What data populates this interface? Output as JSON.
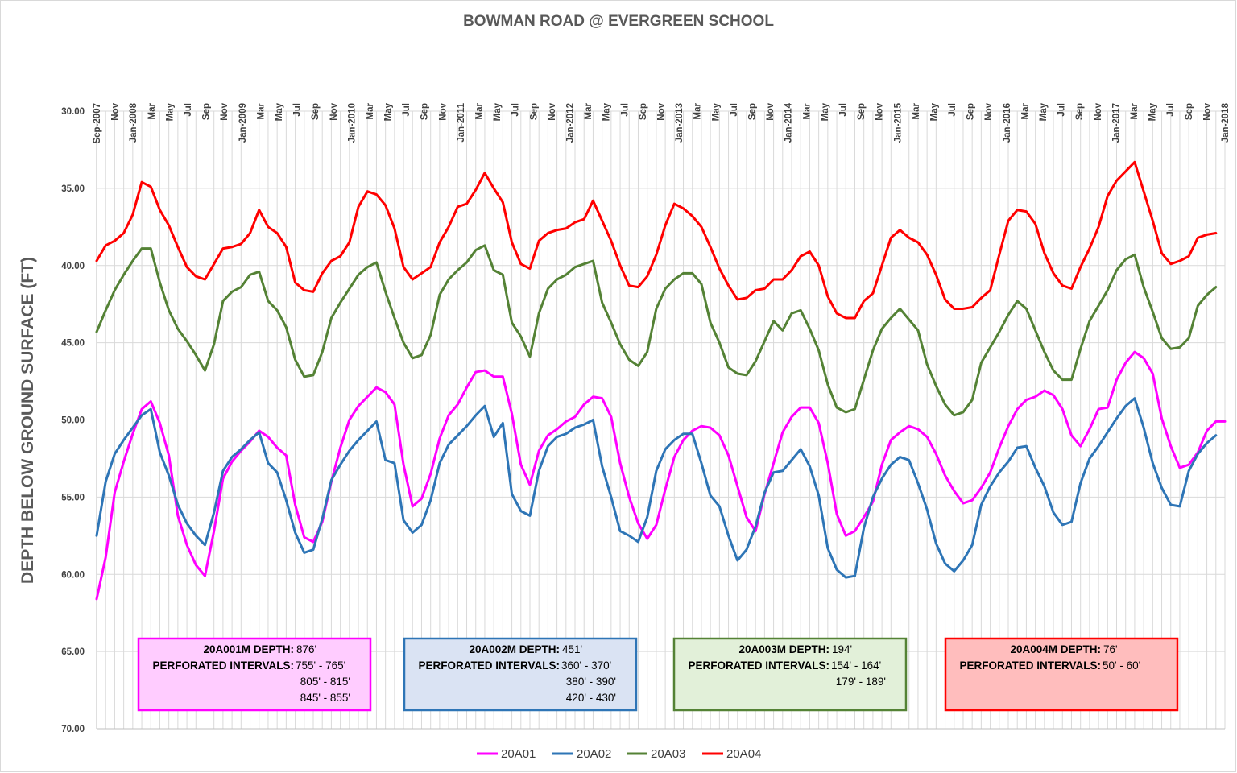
{
  "chart_data": {
    "type": "line",
    "title": "BOWMAN ROAD @ EVERGREEN SCHOOL",
    "ylabel": "DEPTH BELOW GROUND SURFACE (FT)",
    "ylim": [
      30,
      70
    ],
    "y_inverted": true,
    "y_ticks": [
      "30.00",
      "35.00",
      "40.00",
      "45.00",
      "50.00",
      "55.00",
      "60.00",
      "65.00",
      "70.00"
    ],
    "x_start": "Sep-2007",
    "x_end": "Jan-2018",
    "x_tick_labels": [
      "Sep-2007",
      "Nov",
      "Jan-2008",
      "Mar",
      "May",
      "Jul",
      "Sep",
      "Nov",
      "Jan-2009",
      "Mar",
      "May",
      "Jul",
      "Sep",
      "Nov",
      "Jan-2010",
      "Mar",
      "May",
      "Jul",
      "Sep",
      "Nov",
      "Jan-2011",
      "Mar",
      "May",
      "Jul",
      "Sep",
      "Nov",
      "Jan-2012",
      "Mar",
      "May",
      "Jul",
      "Sep",
      "Nov",
      "Jan-2013",
      "Mar",
      "May",
      "Jul",
      "Sep",
      "Nov",
      "Jan-2014",
      "Mar",
      "May",
      "Jul",
      "Sep",
      "Nov",
      "Jan-2015",
      "Mar",
      "May",
      "Jul",
      "Sep",
      "Nov",
      "Jan-2016",
      "Mar",
      "May",
      "Jul",
      "Sep",
      "Nov",
      "Jan-2017",
      "Mar",
      "May",
      "Jul",
      "Sep",
      "Nov",
      "Jan-2018"
    ],
    "grid": true,
    "legend_position": "bottom",
    "series": [
      {
        "name": "20A01",
        "color": "#ff00ff",
        "values": [
          61.6,
          58.9,
          54.7,
          52.7,
          50.9,
          49.3,
          48.8,
          50.2,
          52.3,
          56.2,
          58.1,
          59.4,
          60.1,
          57.2,
          53.8,
          52.7,
          52.0,
          51.4,
          50.7,
          51.1,
          51.8,
          52.3,
          55.5,
          57.6,
          57.9,
          56.6,
          54.0,
          51.8,
          50.0,
          49.1,
          48.5,
          47.9,
          48.2,
          49.0,
          52.9,
          55.6,
          55.1,
          53.5,
          51.2,
          49.7,
          49.0,
          47.9,
          46.9,
          46.8,
          47.2,
          47.2,
          49.6,
          52.9,
          54.2,
          52.0,
          51.0,
          50.6,
          50.1,
          49.8,
          49.0,
          48.5,
          48.6,
          49.8,
          52.8,
          55.0,
          56.7,
          57.7,
          56.8,
          54.5,
          52.4,
          51.3,
          50.7,
          50.4,
          50.5,
          51.0,
          52.3,
          54.3,
          56.3,
          57.2,
          54.8,
          52.8,
          50.8,
          49.8,
          49.2,
          49.2,
          50.2,
          52.8,
          56.1,
          57.5,
          57.2,
          56.3,
          55.3,
          52.9,
          51.3,
          50.8,
          50.4,
          50.6,
          51.1,
          52.2,
          53.6,
          54.6,
          55.4,
          55.2,
          54.4,
          53.4,
          51.8,
          50.4,
          49.3,
          48.7,
          48.5,
          48.1,
          48.4,
          49.3,
          51.0,
          51.7,
          50.6,
          49.3,
          49.2,
          47.4,
          46.3,
          45.6,
          46.0,
          47.0,
          49.9,
          51.7,
          53.1,
          52.9,
          52.1,
          50.7,
          50.1,
          50.1
        ]
      },
      {
        "name": "20A02",
        "color": "#2e75b6",
        "values": [
          57.5,
          54.0,
          52.2,
          51.3,
          50.5,
          49.7,
          49.3,
          52.1,
          53.6,
          55.5,
          56.7,
          57.5,
          58.1,
          56.0,
          53.3,
          52.4,
          51.9,
          51.3,
          50.8,
          52.8,
          53.4,
          55.2,
          57.3,
          58.6,
          58.4,
          56.4,
          53.9,
          52.9,
          52.0,
          51.3,
          50.7,
          50.1,
          52.6,
          52.8,
          56.5,
          57.3,
          56.8,
          55.2,
          52.8,
          51.6,
          51.0,
          50.4,
          49.7,
          49.1,
          51.1,
          50.2,
          54.8,
          55.9,
          56.2,
          53.3,
          51.7,
          51.1,
          50.9,
          50.5,
          50.3,
          50.0,
          53.0,
          55.0,
          57.2,
          57.5,
          57.9,
          56.3,
          53.3,
          51.9,
          51.3,
          50.9,
          50.9,
          52.8,
          54.9,
          55.6,
          57.5,
          59.1,
          58.4,
          56.9,
          54.7,
          53.4,
          53.3,
          52.6,
          51.9,
          53.0,
          54.9,
          58.3,
          59.7,
          60.2,
          60.1,
          57.0,
          55.0,
          53.8,
          52.9,
          52.4,
          52.6,
          54.1,
          55.8,
          58.0,
          59.3,
          59.8,
          59.1,
          58.1,
          55.5,
          54.3,
          53.4,
          52.7,
          51.8,
          51.7,
          53.1,
          54.3,
          56.0,
          56.8,
          56.6,
          54.1,
          52.5,
          51.7,
          50.8,
          49.9,
          49.1,
          48.6,
          50.5,
          52.8,
          54.4,
          55.5,
          55.6,
          53.3,
          52.2,
          51.5,
          51.0
        ]
      },
      {
        "name": "20A03",
        "color": "#548235",
        "values": [
          44.3,
          42.9,
          41.6,
          40.6,
          39.7,
          38.9,
          38.9,
          41.1,
          42.9,
          44.1,
          44.9,
          45.8,
          46.8,
          45.1,
          42.3,
          41.7,
          41.4,
          40.6,
          40.4,
          42.3,
          42.9,
          44.0,
          46.1,
          47.2,
          47.1,
          45.6,
          43.4,
          42.4,
          41.5,
          40.6,
          40.1,
          39.8,
          41.7,
          43.4,
          45.0,
          46.0,
          45.8,
          44.5,
          41.9,
          40.9,
          40.3,
          39.8,
          39.0,
          38.7,
          40.3,
          40.6,
          43.7,
          44.6,
          45.9,
          43.1,
          41.5,
          40.9,
          40.6,
          40.1,
          39.9,
          39.7,
          42.4,
          43.7,
          45.1,
          46.1,
          46.5,
          45.6,
          42.8,
          41.5,
          40.9,
          40.5,
          40.5,
          41.2,
          43.7,
          45.0,
          46.6,
          47.0,
          47.1,
          46.2,
          44.9,
          43.6,
          44.2,
          43.1,
          42.9,
          44.1,
          45.5,
          47.7,
          49.2,
          49.5,
          49.3,
          47.4,
          45.5,
          44.1,
          43.4,
          42.8,
          43.5,
          44.2,
          46.4,
          47.8,
          49.0,
          49.7,
          49.5,
          48.7,
          46.3,
          45.3,
          44.3,
          43.2,
          42.3,
          42.8,
          44.2,
          45.6,
          46.8,
          47.4,
          47.4,
          45.4,
          43.6,
          42.6,
          41.6,
          40.3,
          39.6,
          39.3,
          41.4,
          43.0,
          44.7,
          45.4,
          45.3,
          44.7,
          42.6,
          41.9,
          41.4
        ]
      },
      {
        "name": "20A04",
        "color": "#ff0000",
        "values": [
          39.7,
          38.7,
          38.4,
          37.9,
          36.7,
          34.6,
          34.9,
          36.4,
          37.4,
          38.8,
          40.1,
          40.7,
          40.9,
          39.9,
          38.9,
          38.8,
          38.6,
          37.9,
          36.4,
          37.5,
          37.9,
          38.8,
          41.1,
          41.6,
          41.7,
          40.5,
          39.7,
          39.4,
          38.5,
          36.2,
          35.2,
          35.4,
          36.1,
          37.6,
          40.1,
          40.9,
          40.5,
          40.1,
          38.5,
          37.5,
          36.2,
          36.0,
          35.1,
          34.0,
          35.0,
          35.9,
          38.5,
          39.9,
          40.2,
          38.4,
          37.9,
          37.7,
          37.6,
          37.2,
          37.0,
          35.8,
          37.1,
          38.4,
          40.0,
          41.3,
          41.4,
          40.7,
          39.3,
          37.4,
          36.0,
          36.3,
          36.8,
          37.5,
          38.8,
          40.2,
          41.3,
          42.2,
          42.1,
          41.6,
          41.5,
          40.9,
          40.9,
          40.3,
          39.4,
          39.1,
          40.0,
          42.0,
          43.1,
          43.4,
          43.4,
          42.3,
          41.8,
          40.0,
          38.2,
          37.7,
          38.2,
          38.5,
          39.3,
          40.6,
          42.2,
          42.8,
          42.8,
          42.7,
          42.1,
          41.6,
          39.3,
          37.1,
          36.4,
          36.5,
          37.3,
          39.2,
          40.5,
          41.3,
          41.5,
          40.1,
          38.9,
          37.5,
          35.5,
          34.5,
          33.9,
          33.3,
          35.2,
          37.1,
          39.2,
          39.9,
          39.7,
          39.4,
          38.2,
          38.0,
          37.9
        ]
      }
    ],
    "annotations": [
      {
        "id": "20A001M",
        "color": "#ff00ff",
        "fill": "#ffccff",
        "heading_label": "20A001M DEPTH:",
        "heading_value": "876'",
        "intervals_label": "PERFORATED INTERVALS:",
        "intervals": [
          "755' - 765'",
          "805' - 815'",
          "845' - 855'"
        ]
      },
      {
        "id": "20A002M",
        "color": "#2e75b6",
        "fill": "#dae3f3",
        "heading_label": "20A002M DEPTH:",
        "heading_value": "451'",
        "intervals_label": "PERFORATED INTERVALS:",
        "intervals": [
          "360' - 370'",
          "380' - 390'",
          "420' - 430'"
        ]
      },
      {
        "id": "20A003M",
        "color": "#548235",
        "fill": "#e2f0d9",
        "heading_label": "20A003M DEPTH:",
        "heading_value": "194'",
        "intervals_label": "PERFORATED INTERVALS:",
        "intervals": [
          "154' - 164'",
          "179' - 189'"
        ]
      },
      {
        "id": "20A004M",
        "color": "#ff0000",
        "fill": "#ffbdbd",
        "heading_label": "20A004M DEPTH:",
        "heading_value": "76'",
        "intervals_label": "PERFORATED INTERVALS:",
        "intervals": [
          "50' - 60'"
        ]
      }
    ]
  }
}
